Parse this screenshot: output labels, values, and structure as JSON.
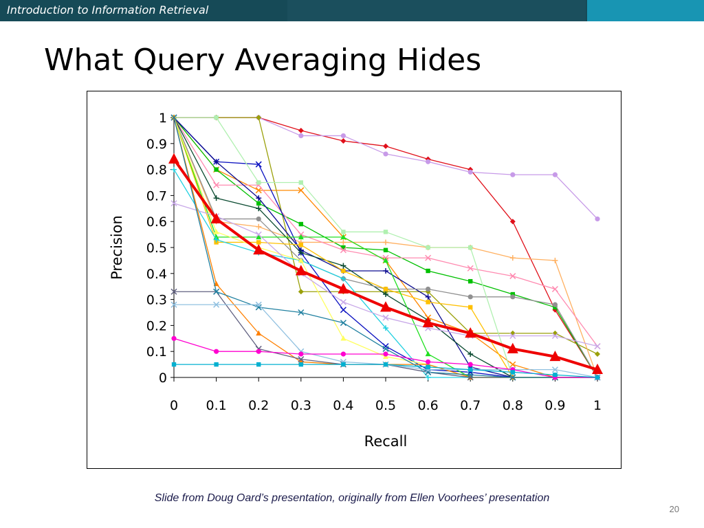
{
  "header": {
    "course_title": "Introduction to Information Retrieval"
  },
  "slide": {
    "title": "What Query Averaging Hides",
    "footer": "Slide from Doug Oard’s presentation, originally from Ellen Voorhees’ presentation",
    "page_number": "20"
  },
  "chart_data": {
    "type": "line",
    "xlabel": "Recall",
    "ylabel": "Precision",
    "xlim": [
      0,
      1
    ],
    "ylim": [
      0,
      1
    ],
    "x": [
      0,
      0.1,
      0.2,
      0.3,
      0.4,
      0.5,
      0.6,
      0.7,
      0.8,
      0.9,
      1
    ],
    "x_ticks": [
      "0",
      "0.1",
      "0.2",
      "0.3",
      "0.4",
      "0.5",
      "0.6",
      "0.7",
      "0.8",
      "0.9",
      "1"
    ],
    "y_ticks": [
      "0",
      "0.1",
      "0.2",
      "0.3",
      "0.4",
      "0.5",
      "0.6",
      "0.7",
      "0.8",
      "0.9",
      "1"
    ],
    "grid": false,
    "legend": "none",
    "series": [
      {
        "color": "#e0101a",
        "marker": "diamond",
        "values": [
          1,
          1,
          1,
          0.95,
          0.91,
          0.89,
          0.84,
          0.8,
          0.6,
          0.26,
          0
        ]
      },
      {
        "color": "#c79ae8",
        "marker": "circle",
        "values": [
          1,
          1,
          1,
          0.93,
          0.93,
          0.86,
          0.83,
          0.79,
          0.78,
          0.78,
          0.61
        ]
      },
      {
        "color": "#9aa00a",
        "marker": "diamond",
        "values": [
          1,
          1,
          1,
          0.33,
          0.33,
          0.33,
          0.33,
          0.17,
          0.17,
          0.17,
          0.09
        ]
      },
      {
        "color": "#ff8800",
        "marker": "x",
        "values": [
          1,
          0.8,
          0.72,
          0.72,
          0.54,
          0.45,
          0.23,
          0.17,
          0.05,
          0,
          0
        ]
      },
      {
        "color": "#00c000",
        "marker": "square",
        "values": [
          1,
          0.8,
          0.67,
          0.59,
          0.5,
          0.49,
          0.41,
          0.37,
          0.32,
          0.27,
          0
        ]
      },
      {
        "color": "#ffb060",
        "marker": "plus",
        "values": [
          1,
          0.6,
          0.58,
          0.52,
          0.52,
          0.52,
          0.5,
          0.5,
          0.46,
          0.45,
          0
        ]
      },
      {
        "color": "#ff8ab0",
        "marker": "x",
        "values": [
          1,
          0.74,
          0.74,
          0.55,
          0.49,
          0.46,
          0.46,
          0.42,
          0.39,
          0.34,
          0.12
        ]
      },
      {
        "color": "#0a10c0",
        "marker": "x",
        "values": [
          1,
          0.83,
          0.82,
          0.48,
          0.26,
          0.12,
          0.03,
          0.02,
          0,
          0,
          0
        ]
      },
      {
        "color": "#0a0a90",
        "marker": "plus",
        "values": [
          1,
          0.83,
          0.69,
          0.49,
          0.41,
          0.41,
          0.31,
          0.04,
          0,
          0,
          0
        ]
      },
      {
        "color": "#0a4a30",
        "marker": "plus",
        "values": [
          1,
          0.69,
          0.65,
          0.48,
          0.43,
          0.32,
          0.22,
          0.09,
          0,
          0,
          0
        ]
      },
      {
        "color": "#909090",
        "marker": "circle",
        "values": [
          1,
          0.61,
          0.61,
          0.45,
          0.38,
          0.34,
          0.34,
          0.31,
          0.31,
          0.28,
          0
        ]
      },
      {
        "color": "#ffc000",
        "marker": "square",
        "values": [
          1,
          0.52,
          0.52,
          0.51,
          0.41,
          0.34,
          0.29,
          0.27,
          0,
          0,
          0
        ]
      },
      {
        "color": "#20e020",
        "marker": "triangle",
        "values": [
          1,
          0.54,
          0.54,
          0.54,
          0.54,
          0.45,
          0.09,
          0,
          0,
          0,
          0
        ]
      },
      {
        "color": "#b0f0b0",
        "marker": "square",
        "values": [
          1,
          1,
          0.75,
          0.75,
          0.56,
          0.56,
          0.5,
          0.5,
          0,
          0,
          0
        ]
      },
      {
        "color": "#20d0e0",
        "marker": "plus",
        "values": [
          0.8,
          0.53,
          0.48,
          0.45,
          0.38,
          0.19,
          0,
          0,
          0,
          0,
          0
        ]
      },
      {
        "color": "#ffff60",
        "marker": "triangle",
        "values": [
          1,
          0.56,
          0.5,
          0.45,
          0.15,
          0.08,
          0.05,
          0,
          0,
          0,
          0
        ]
      },
      {
        "color": "#c8a8e8",
        "marker": "x",
        "values": [
          0.67,
          0.62,
          0.55,
          0.4,
          0.29,
          0.23,
          0.19,
          0.16,
          0.16,
          0.16,
          0.12
        ]
      },
      {
        "color": "#ff8000",
        "marker": "triangle",
        "values": [
          1,
          0.36,
          0.17,
          0.06,
          0.05,
          0.05,
          0.05,
          0,
          0,
          0,
          0
        ]
      },
      {
        "color": "#606080",
        "marker": "x",
        "values": [
          0.33,
          0.33,
          0.11,
          0.07,
          0.05,
          0.05,
          0.02,
          0,
          0,
          0,
          0
        ]
      },
      {
        "color": "#2080a0",
        "marker": "x",
        "values": [
          1,
          0.33,
          0.27,
          0.25,
          0.21,
          0.11,
          0.02,
          0.01,
          0,
          0,
          0
        ]
      },
      {
        "color": "#90c0e0",
        "marker": "x",
        "values": [
          0.28,
          0.28,
          0.28,
          0.1,
          0.06,
          0.05,
          0.03,
          0.03,
          0.03,
          0.03,
          0
        ]
      },
      {
        "color": "#ff00d0",
        "marker": "circle",
        "values": [
          0.15,
          0.1,
          0.1,
          0.09,
          0.09,
          0.09,
          0.06,
          0.05,
          0.03,
          0,
          0
        ]
      },
      {
        "color": "#00b0d0",
        "marker": "square",
        "values": [
          0.05,
          0.05,
          0.05,
          0.05,
          0.05,
          0.05,
          0.04,
          0.03,
          0.02,
          0.01,
          0
        ]
      },
      {
        "color": "#ee0000",
        "marker": "triangle",
        "average": true,
        "values": [
          0.84,
          0.61,
          0.49,
          0.41,
          0.34,
          0.27,
          0.21,
          0.17,
          0.11,
          0.08,
          0.03
        ]
      }
    ]
  }
}
